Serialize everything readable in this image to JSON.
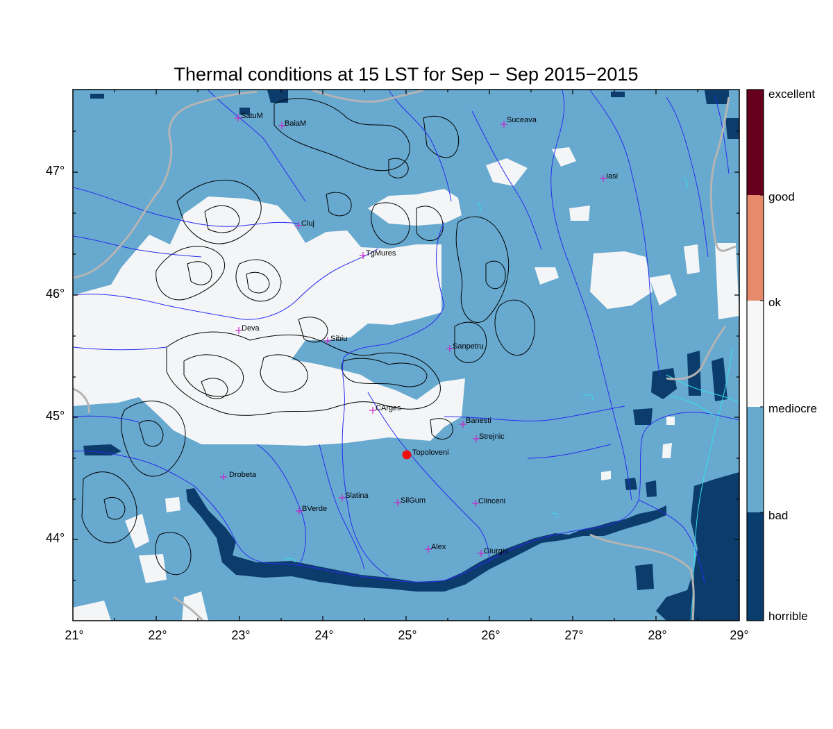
{
  "title": "Thermal conditions at 15 LST for Sep − Sep  2015−2015",
  "latitude_labels": [
    "47°",
    "46°",
    "45°",
    "44°"
  ],
  "longitude_labels": [
    "21°",
    "22°",
    "23°",
    "24°",
    "25°",
    "26°",
    "27°",
    "28°",
    "29°"
  ],
  "colorbar": {
    "labels": [
      "excellent",
      "good",
      "ok",
      "mediocre",
      "bad",
      "horrible"
    ],
    "colors": [
      "#67001f",
      "#e58b6b",
      "#f7f7f7",
      "#67a9cf",
      "#083d6e"
    ]
  },
  "colors": {
    "land_bad": "#67a9cf",
    "land_mediocre": "#f4f5f6",
    "horrible": "#0b3c6c",
    "rivers": "#2a2df0",
    "borders": "#b4b4b4",
    "coast": "#33e0f0",
    "contours": "#000000",
    "station_marker": "#c626c6",
    "highlight_marker": "#ee1111"
  },
  "stations": [
    {
      "name": "SatuM"
    },
    {
      "name": "BaiaM"
    },
    {
      "name": "Suceava"
    },
    {
      "name": "Iasi"
    },
    {
      "name": "Cluj"
    },
    {
      "name": "TgMures"
    },
    {
      "name": "Deva"
    },
    {
      "name": "Sibiu"
    },
    {
      "name": "Sanpetru"
    },
    {
      "name": "CArges"
    },
    {
      "name": "Banesti"
    },
    {
      "name": "Strejnic"
    },
    {
      "name": "Drobeta"
    },
    {
      "name": "Slatina"
    },
    {
      "name": "SilGum"
    },
    {
      "name": "Clinceni"
    },
    {
      "name": "BVerde"
    },
    {
      "name": "Alex"
    },
    {
      "name": "Giurgiu"
    }
  ],
  "highlight_station": {
    "name": "Topoloveni"
  }
}
